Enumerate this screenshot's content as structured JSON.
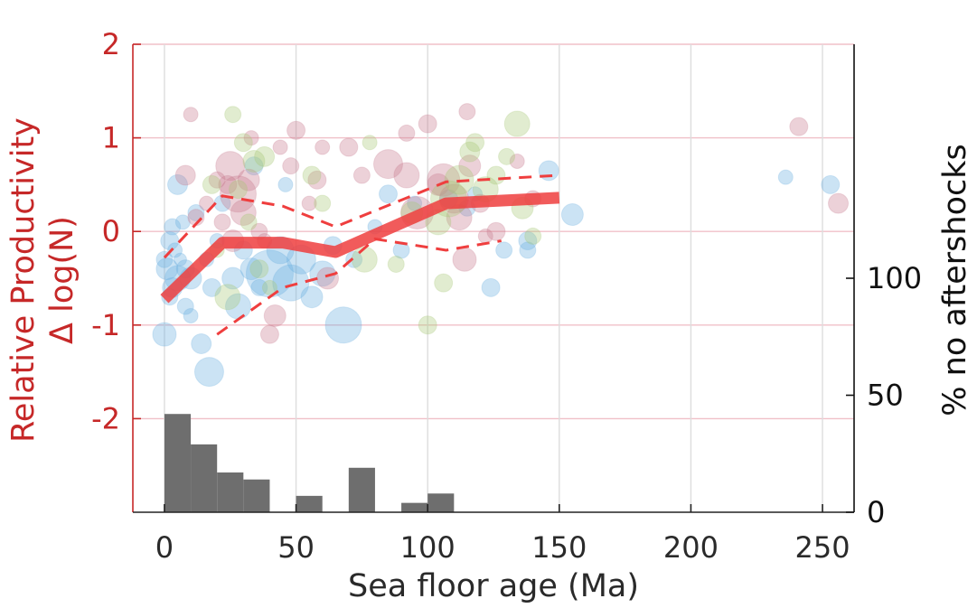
{
  "colors": {
    "left_axis": "#c62828",
    "trend": "#ef3e3e",
    "grid_h": "#f0c0c8",
    "grid_v": "#dddddd",
    "hist": "#6e6e6e",
    "blue": "#6aaee0",
    "pink": "#c97a8e",
    "green": "#a8c878"
  },
  "chart_data": {
    "type": "scatter",
    "title": "",
    "xlabel": "Sea floor age (Ma)",
    "ylabel_line1": "Relative Productivity",
    "ylabel_line2": "Δ log(N)",
    "y2label": "% no aftershocks",
    "xlim": [
      -12,
      262
    ],
    "ylim": [
      -3,
      2
    ],
    "y2lim": [
      0,
      200
    ],
    "grid": true,
    "x_ticks": [
      0,
      50,
      100,
      150,
      200,
      250
    ],
    "x_tick_labels": [
      "0",
      "50",
      "100",
      "150",
      "200",
      "250"
    ],
    "y_ticks": [
      2,
      1,
      0,
      -1,
      -2
    ],
    "y_tick_labels": [
      "2",
      "1",
      "0",
      "-1",
      "-2"
    ],
    "y2_ticks": [
      0,
      50,
      100
    ],
    "y2_tick_labels": [
      "0",
      "50",
      "100"
    ],
    "median_line": {
      "x": [
        0,
        22,
        45,
        65,
        107,
        150
      ],
      "y": [
        -0.72,
        -0.12,
        -0.12,
        -0.22,
        0.3,
        0.36
      ]
    },
    "upper_bound": {
      "x": [
        0,
        22,
        45,
        65,
        107,
        150
      ],
      "y": [
        -0.28,
        0.38,
        0.27,
        0.05,
        0.53,
        0.6
      ]
    },
    "lower_bound": {
      "x": [
        20,
        45,
        65,
        80,
        107,
        128
      ],
      "y": [
        -1.1,
        -0.6,
        -0.45,
        -0.08,
        -0.2,
        -0.1
      ]
    },
    "histogram": {
      "bin_edges": [
        0,
        10,
        20,
        30,
        40,
        50,
        60,
        70,
        80,
        90,
        100,
        110
      ],
      "percent_no_aftershocks": [
        42,
        29,
        17,
        14,
        0,
        7,
        0,
        19,
        0,
        4,
        8
      ]
    },
    "series": [
      {
        "color": "blue",
        "points": [
          [
            0,
            -0.3,
            9
          ],
          [
            2,
            -0.1,
            10
          ],
          [
            1,
            -0.4,
            12
          ],
          [
            3,
            -0.6,
            11
          ],
          [
            5,
            -0.5,
            14
          ],
          [
            2,
            -0.7,
            9
          ],
          [
            4,
            -0.2,
            8
          ],
          [
            6,
            -0.3,
            7
          ],
          [
            8,
            -0.4,
            10
          ],
          [
            10,
            -0.5,
            12
          ],
          [
            7,
            0.1,
            8
          ],
          [
            3,
            0.05,
            9
          ],
          [
            0,
            -1.1,
            13
          ],
          [
            5,
            0.5,
            11
          ],
          [
            8,
            -0.8,
            9
          ],
          [
            10,
            -0.9,
            8
          ],
          [
            14,
            -1.2,
            11
          ],
          [
            16,
            -0.3,
            8
          ],
          [
            17,
            -1.5,
            16
          ],
          [
            12,
            0.2,
            9
          ],
          [
            18,
            -0.6,
            10
          ],
          [
            20,
            -0.1,
            8
          ],
          [
            22,
            0.3,
            9
          ],
          [
            26,
            -0.5,
            12
          ],
          [
            28,
            -0.8,
            14
          ],
          [
            30,
            -0.2,
            10
          ],
          [
            33,
            -0.4,
            12
          ],
          [
            36,
            -0.6,
            9
          ],
          [
            40,
            -0.45,
            26
          ],
          [
            44,
            -0.2,
            15
          ],
          [
            48,
            -0.55,
            20
          ],
          [
            52,
            -0.3,
            16
          ],
          [
            56,
            -0.7,
            12
          ],
          [
            60,
            -0.45,
            14
          ],
          [
            64,
            -0.15,
            10
          ],
          [
            68,
            -1.0,
            20
          ],
          [
            72,
            -0.3,
            9
          ],
          [
            80,
            0.05,
            8
          ],
          [
            85,
            0.4,
            10
          ],
          [
            90,
            -0.2,
            9
          ],
          [
            95,
            0.3,
            8
          ],
          [
            108,
            0.35,
            10
          ],
          [
            115,
            0.25,
            9
          ],
          [
            118,
            0.4,
            8
          ],
          [
            124,
            -0.6,
            10
          ],
          [
            129,
            -0.2,
            9
          ],
          [
            138,
            -0.1,
            10
          ],
          [
            146,
            0.65,
            11
          ],
          [
            155,
            0.18,
            12
          ],
          [
            138,
            -0.2,
            9
          ],
          [
            236,
            0.58,
            8
          ],
          [
            253,
            0.5,
            10
          ],
          [
            34,
            0.7,
            10
          ],
          [
            46,
            0.5,
            8
          ]
        ]
      },
      {
        "color": "pink",
        "points": [
          [
            10,
            1.25,
            8
          ],
          [
            25,
            0.7,
            16
          ],
          [
            28,
            0.4,
            20
          ],
          [
            30,
            0.2,
            14
          ],
          [
            32,
            0.55,
            12
          ],
          [
            26,
            -0.1,
            12
          ],
          [
            24,
            0.5,
            10
          ],
          [
            22,
            0.1,
            9
          ],
          [
            36,
            0.0,
            9
          ],
          [
            38,
            -0.1,
            8
          ],
          [
            42,
            -0.9,
            12
          ],
          [
            40,
            -1.1,
            10
          ],
          [
            50,
            1.08,
            10
          ],
          [
            48,
            0.7,
            9
          ],
          [
            55,
            0.3,
            8
          ],
          [
            58,
            0.55,
            10
          ],
          [
            62,
            -0.5,
            12
          ],
          [
            70,
            0.9,
            10
          ],
          [
            75,
            0.6,
            9
          ],
          [
            85,
            0.72,
            16
          ],
          [
            92,
            0.6,
            14
          ],
          [
            96,
            0.2,
            18
          ],
          [
            100,
            1.15,
            10
          ],
          [
            104,
            0.5,
            12
          ],
          [
            106,
            0.55,
            18
          ],
          [
            110,
            0.35,
            16
          ],
          [
            112,
            0.15,
            14
          ],
          [
            114,
            -0.3,
            13
          ],
          [
            115,
            1.28,
            9
          ],
          [
            116,
            0.7,
            12
          ],
          [
            120,
            0.3,
            10
          ],
          [
            122,
            -0.05,
            8
          ],
          [
            126,
            0.0,
            10
          ],
          [
            134,
            0.75,
            8
          ],
          [
            140,
            0.35,
            9
          ],
          [
            8,
            0.6,
            11
          ],
          [
            12,
            0.15,
            9
          ],
          [
            16,
            0.3,
            8
          ],
          [
            20,
            0.55,
            9
          ],
          [
            241,
            1.12,
            10
          ],
          [
            256,
            0.3,
            11
          ],
          [
            33,
            1.0,
            8
          ],
          [
            44,
            0.9,
            8
          ],
          [
            60,
            0.9,
            8
          ],
          [
            92,
            1.05,
            9
          ]
        ]
      },
      {
        "color": "green",
        "points": [
          [
            26,
            1.25,
            9
          ],
          [
            30,
            0.95,
            10
          ],
          [
            34,
            0.75,
            12
          ],
          [
            28,
            0.45,
            10
          ],
          [
            32,
            0.1,
            9
          ],
          [
            24,
            -0.7,
            14
          ],
          [
            36,
            -0.4,
            10
          ],
          [
            40,
            -0.6,
            8
          ],
          [
            38,
            0.8,
            11
          ],
          [
            56,
            0.6,
            10
          ],
          [
            60,
            0.3,
            9
          ],
          [
            78,
            0.95,
            8
          ],
          [
            76,
            -0.3,
            14
          ],
          [
            88,
            -0.35,
            9
          ],
          [
            94,
            0.2,
            12
          ],
          [
            100,
            -1.0,
            10
          ],
          [
            104,
            0.1,
            14
          ],
          [
            108,
            0.35,
            20
          ],
          [
            112,
            0.55,
            16
          ],
          [
            116,
            0.85,
            11
          ],
          [
            118,
            0.95,
            10
          ],
          [
            122,
            0.45,
            14
          ],
          [
            126,
            0.6,
            10
          ],
          [
            130,
            0.8,
            9
          ],
          [
            134,
            1.15,
            14
          ],
          [
            136,
            0.25,
            12
          ],
          [
            140,
            -0.05,
            9
          ],
          [
            106,
            -0.55,
            10
          ],
          [
            18,
            0.5,
            10
          ],
          [
            20,
            -0.2,
            8
          ]
        ]
      }
    ]
  }
}
